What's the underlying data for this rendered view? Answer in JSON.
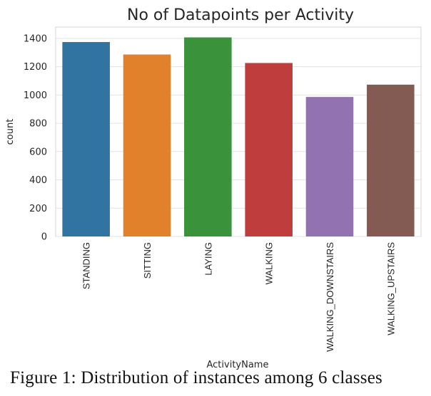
{
  "chart_data": {
    "type": "bar",
    "title": "No of Datapoints per Activity",
    "xlabel": "ActivityName",
    "ylabel": "count",
    "categories": [
      "STANDING",
      "SITTING",
      "LAYING",
      "WALKING",
      "WALKING_DOWNSTAIRS",
      "WALKING_UPSTAIRS"
    ],
    "values": [
      1374,
      1286,
      1407,
      1226,
      986,
      1073
    ],
    "colors": [
      "#3274a1",
      "#e1812c",
      "#3a923a",
      "#c03d3e",
      "#9372b2",
      "#845b53"
    ],
    "ylim": [
      0,
      1480
    ],
    "yticks": [
      0,
      200,
      400,
      600,
      800,
      1000,
      1200,
      1400
    ],
    "grid": true,
    "legend": "none"
  },
  "caption": "Figure 1: Distribution of instances among 6 classes"
}
